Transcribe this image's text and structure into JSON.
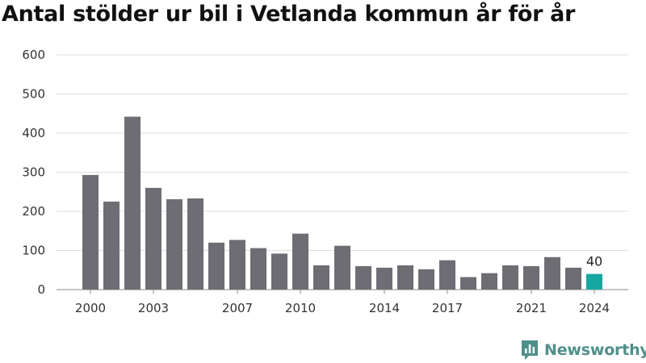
{
  "title": "Antal stölder ur bil i Vetlanda kommun år för år",
  "brand": {
    "name": "Newsworthy",
    "icon": "newsworthy-logo-icon"
  },
  "colors": {
    "bar": "#6e6d73",
    "highlight": "#16a8a0",
    "grid": "#dddddd",
    "brand": "#4f8f8a"
  },
  "chart_data": {
    "type": "bar",
    "title": "Antal stölder ur bil i Vetlanda kommun år för år",
    "xlabel": "",
    "ylabel": "",
    "ylim": [
      0,
      600
    ],
    "y_ticks": [
      0,
      100,
      200,
      300,
      400,
      500,
      600
    ],
    "x_tick_labels": [
      "2000",
      "2003",
      "2007",
      "2010",
      "2014",
      "2017",
      "2021",
      "2024"
    ],
    "categories": [
      "2000",
      "2001",
      "2002",
      "2003",
      "2004",
      "2005",
      "2006",
      "2007",
      "2008",
      "2009",
      "2010",
      "2011",
      "2012",
      "2013",
      "2014",
      "2015",
      "2016",
      "2017",
      "2018",
      "2019",
      "2020",
      "2021",
      "2022",
      "2023",
      "2024"
    ],
    "values": [
      293,
      225,
      442,
      260,
      231,
      233,
      120,
      127,
      106,
      92,
      143,
      62,
      112,
      60,
      56,
      62,
      52,
      75,
      32,
      42,
      62,
      60,
      83,
      56,
      40
    ],
    "highlight": {
      "category": "2024",
      "label": "40"
    },
    "grid": true,
    "legend": "none"
  }
}
